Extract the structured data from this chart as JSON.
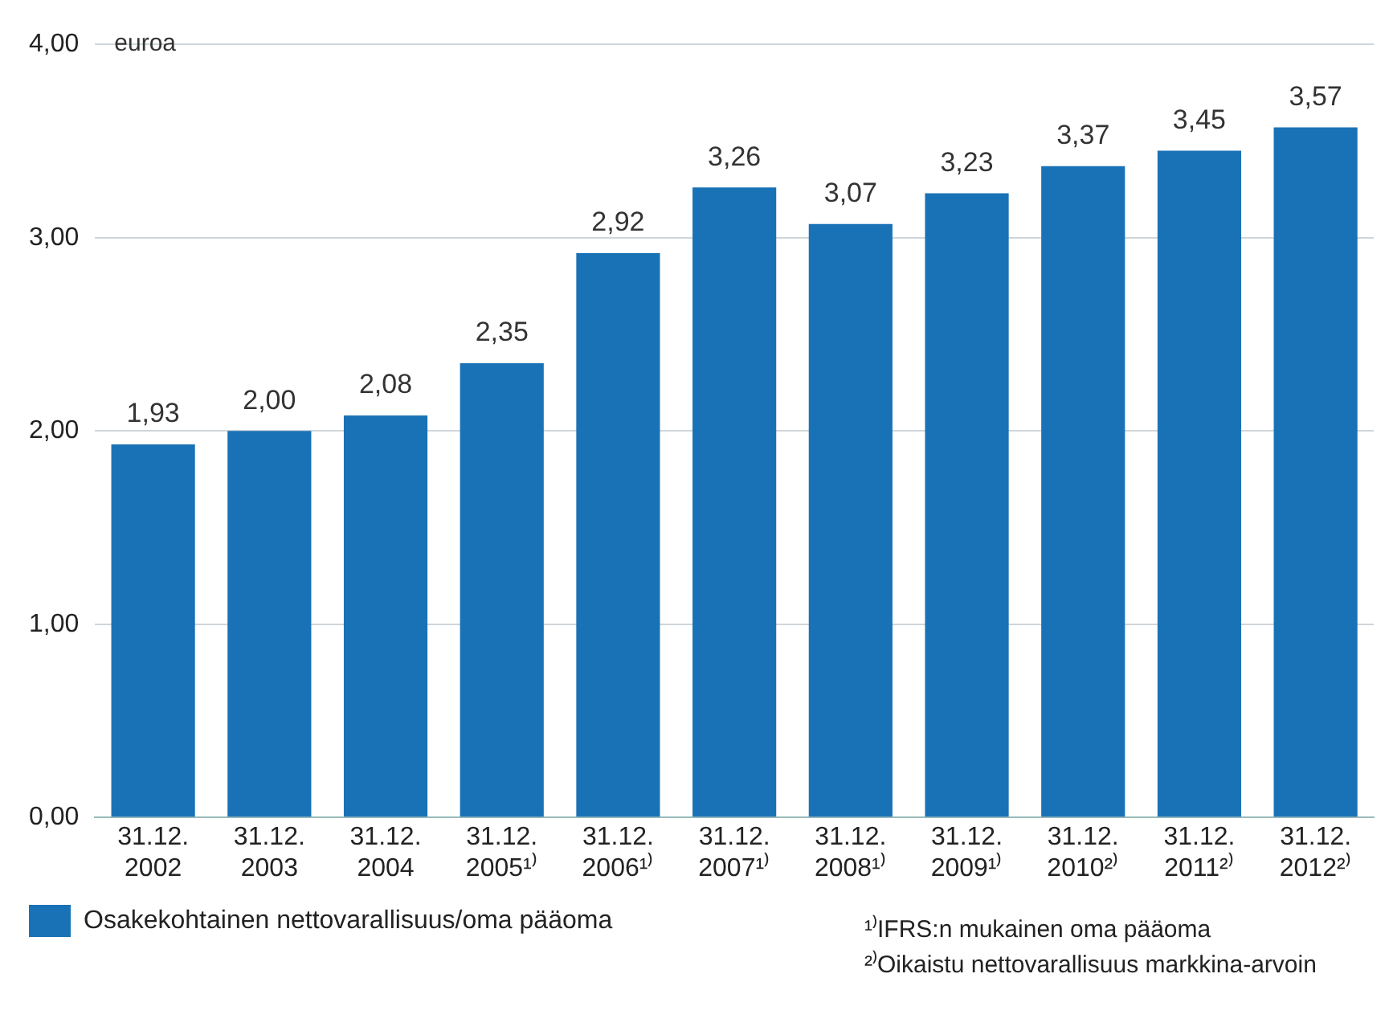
{
  "chart_data": {
    "type": "bar",
    "ylabel": "euroa",
    "categories": [
      "31.12. 2002",
      "31.12. 2003",
      "31.12. 2004",
      "31.12. 2005¹⁾",
      "31.12. 2006¹⁾",
      "31.12. 2007¹⁾",
      "31.12. 2008¹⁾",
      "31.12. 2009¹⁾",
      "31.12. 2010²⁾",
      "31.12. 2011²⁾",
      "31.12. 2012²⁾"
    ],
    "series": [
      {
        "name": "Osakekohtainen nettovarallisuus/oma pääoma",
        "color": "#1a72b6",
        "values": [
          1.93,
          2.0,
          2.08,
          2.35,
          2.92,
          3.26,
          3.07,
          3.23,
          3.37,
          3.45,
          3.57
        ],
        "value_labels": [
          "1,93",
          "2,00",
          "2,08",
          "2,35",
          "2,92",
          "3,26",
          "3,07",
          "3,23",
          "3,37",
          "3,45",
          "3,57"
        ]
      }
    ],
    "ylim": [
      0,
      4
    ],
    "yticks": [
      {
        "value": 0,
        "label": "0,00"
      },
      {
        "value": 1,
        "label": "1,00"
      },
      {
        "value": 2,
        "label": "2,00"
      },
      {
        "value": 3,
        "label": "3,00"
      },
      {
        "value": 4,
        "label": "4,00"
      }
    ],
    "grid": "y",
    "legend": "bottom left",
    "annotations": [
      "¹⁾IFRS:n mukainen oma pääoma",
      "²⁾Oikaistu nettovarallisuus markkina-arvoin"
    ]
  }
}
